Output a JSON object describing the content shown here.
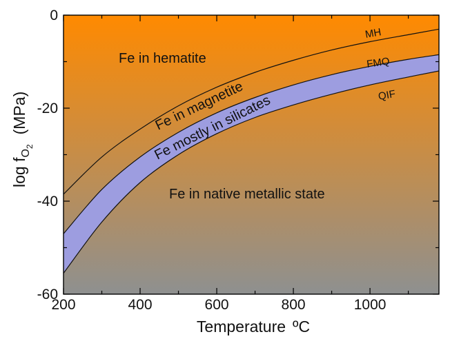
{
  "chart_data": {
    "type": "line",
    "xlabel_main": "Temperature",
    "xlabel_unit": "ºC",
    "ylabel_main": "log f",
    "ylabel_sub": "O",
    "ylabel_subsub": "2",
    "ylabel_unit": "(MPa)",
    "xlim": [
      200,
      1180
    ],
    "ylim": [
      -60,
      0
    ],
    "xticks": [
      200,
      400,
      600,
      800,
      1000
    ],
    "yticks": [
      0,
      -20,
      -40,
      -60
    ],
    "x": [
      200,
      300,
      400,
      500,
      600,
      700,
      800,
      900,
      1000,
      1100,
      1180
    ],
    "series": [
      {
        "name": "MH",
        "values": [
          -38.5,
          -30.5,
          -24.5,
          -19.5,
          -15.5,
          -12.3,
          -9.7,
          -7.5,
          -5.7,
          -4.2,
          -3.0
        ]
      },
      {
        "name": "FMQ",
        "values": [
          -47.0,
          -37.5,
          -30.5,
          -25.2,
          -21.0,
          -17.7,
          -15.0,
          -12.8,
          -11.0,
          -9.5,
          -8.5
        ]
      },
      {
        "name": "QIF",
        "values": [
          -55.5,
          -44.5,
          -36.0,
          -30.0,
          -25.5,
          -22.0,
          -19.3,
          -17.0,
          -15.0,
          -13.3,
          -12.0
        ]
      }
    ],
    "region_labels": {
      "hematite": "Fe in hematite",
      "magnetite": "Fe in magnetite",
      "silicates": "Fe mostly in silicates",
      "native": "Fe in native metallic state"
    },
    "band_color": "#9d9de0",
    "background_gradient": [
      "#ff8a00",
      "#8e9090"
    ],
    "grid": false
  }
}
